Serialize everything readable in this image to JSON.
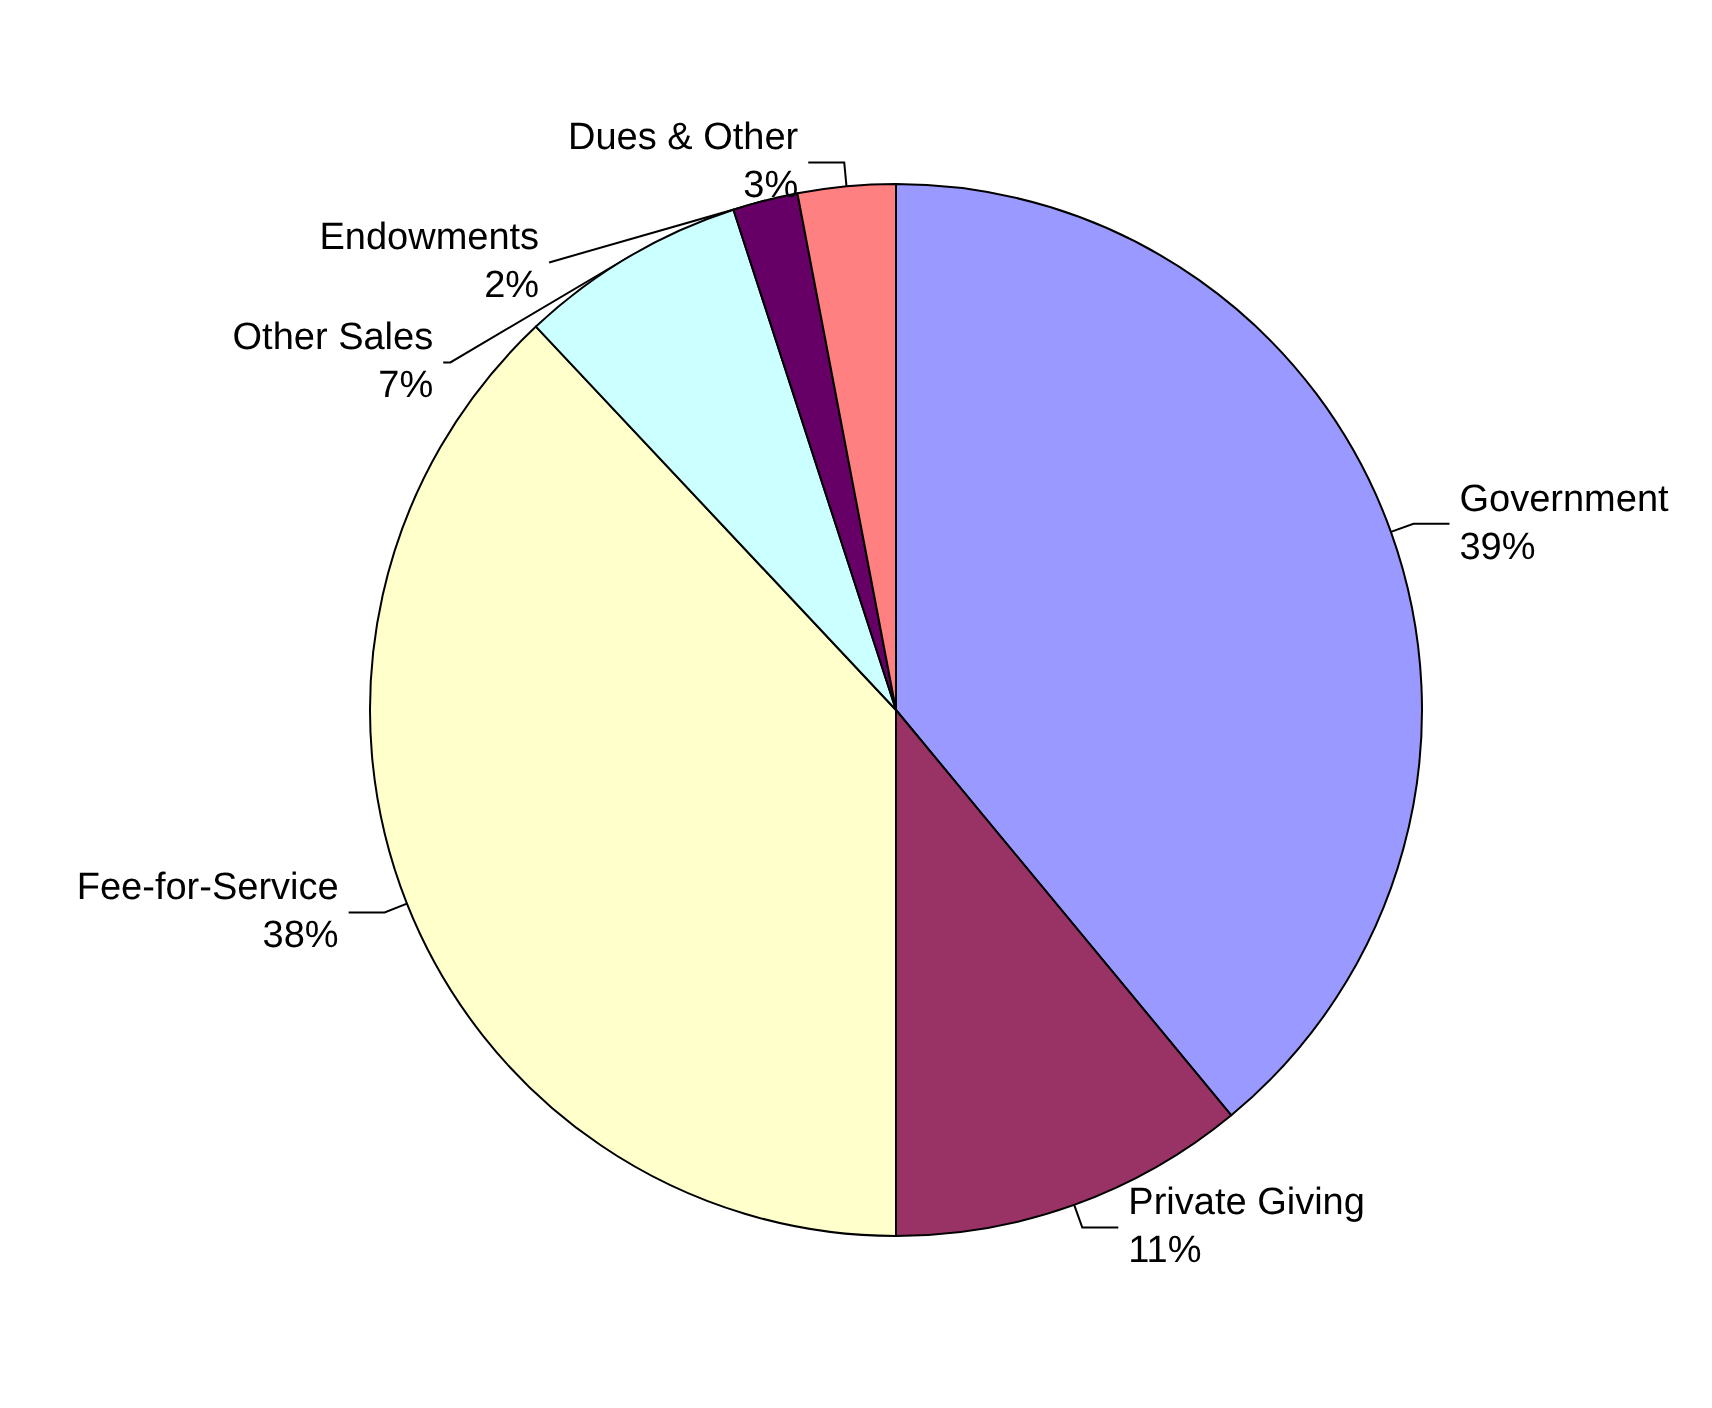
{
  "chart_data": {
    "type": "pie",
    "categories": [
      "Government",
      "Private Giving",
      "Fee-for-Service",
      "Other Sales",
      "Endowments",
      "Dues & Other"
    ],
    "values": [
      39,
      11,
      38,
      7,
      2,
      3
    ],
    "value_labels": [
      "39%",
      "11%",
      "38%",
      "7%",
      "2%",
      "3%"
    ],
    "colors": [
      "#9999ff",
      "#993366",
      "#ffffcc",
      "#ccffff",
      "#660066",
      "#ff8080"
    ],
    "legend": false
  }
}
